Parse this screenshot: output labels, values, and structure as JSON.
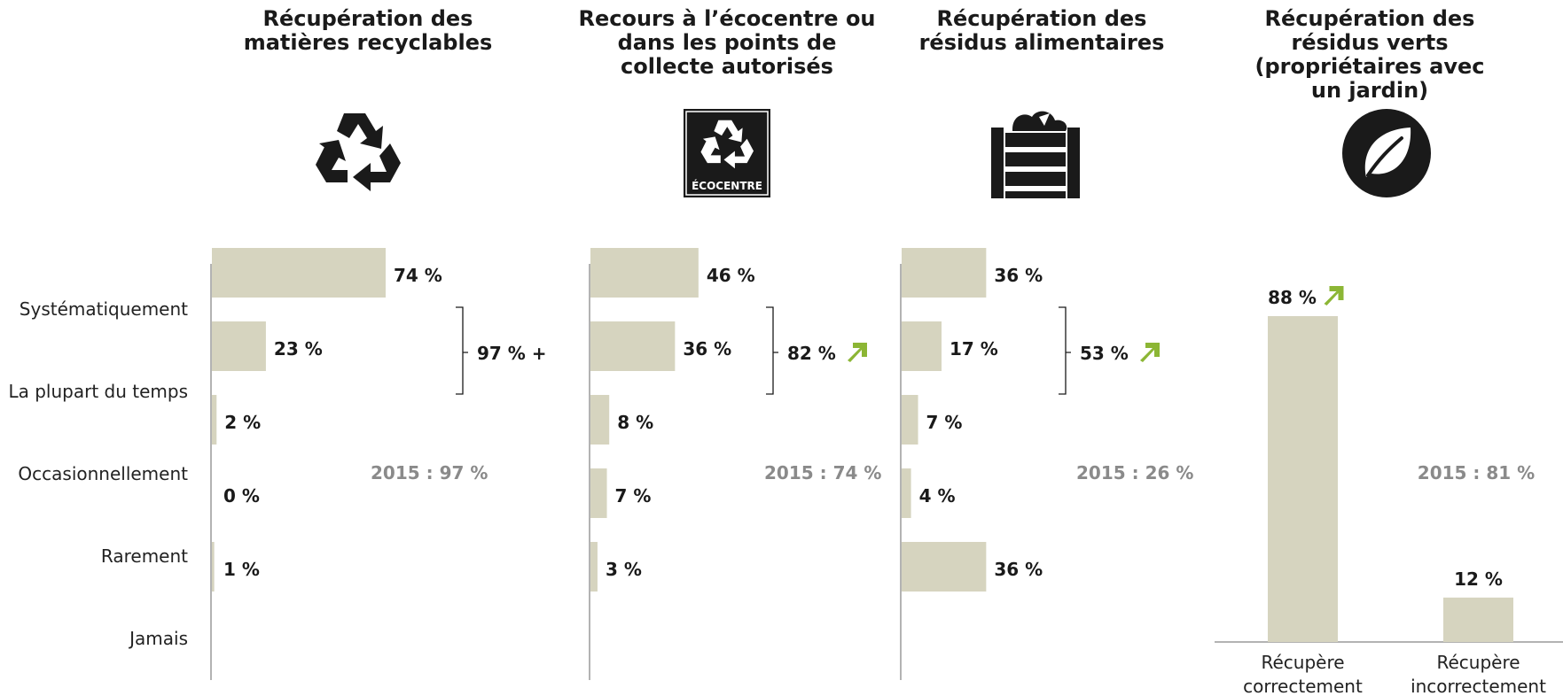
{
  "chart_data": {
    "type": "bar",
    "categories": [
      "Systématiquement",
      "La plupart du temps",
      "Occasionnellement",
      "Rarement",
      "Jamais"
    ],
    "panels": [
      {
        "title": "Récupération des matières recyclables",
        "icon": "recycling-icon",
        "values": [
          74,
          23,
          2,
          0,
          1
        ],
        "value_labels": [
          "74 %",
          "23 %",
          "2 %",
          "0 %",
          "1 %"
        ],
        "bracket_label": "97 % +",
        "trend_up": false,
        "previous": "2015 : 97 %"
      },
      {
        "title": "Recours à l’écocentre ou dans les points de collecte autorisés",
        "icon": "ecocentre-icon",
        "icon_text": "ÉCOCENTRE",
        "values": [
          46,
          36,
          8,
          7,
          3
        ],
        "value_labels": [
          "46 %",
          "36 %",
          "8 %",
          "7 %",
          "3 %"
        ],
        "bracket_label": "82 %",
        "trend_up": true,
        "previous": "2015 : 74 %"
      },
      {
        "title": "Récupération des résidus alimentaires",
        "icon": "compost-bin-icon",
        "values": [
          36,
          17,
          7,
          4,
          36
        ],
        "value_labels": [
          "36 %",
          "17 %",
          "7 %",
          "4 %",
          "36 %"
        ],
        "bracket_label": "53 %",
        "trend_up": true,
        "previous": "2015 : 26 %"
      },
      {
        "title": "Récupération des résidus verts (propriétaires avec un jardin)",
        "icon": "leaf-icon",
        "type": "column",
        "categories": [
          "Récupère correctement",
          "Récupère incorrectement"
        ],
        "values": [
          88,
          12
        ],
        "value_labels": [
          "88 %",
          "12 %"
        ],
        "trend_up": [
          true,
          false
        ],
        "previous": "2015 : 81 %"
      }
    ],
    "colors": {
      "bar": "#d6d4bf",
      "axis": "#9a9a9a",
      "trend": "#8cb635",
      "muted": "#8a8a8a"
    },
    "grid": false
  }
}
